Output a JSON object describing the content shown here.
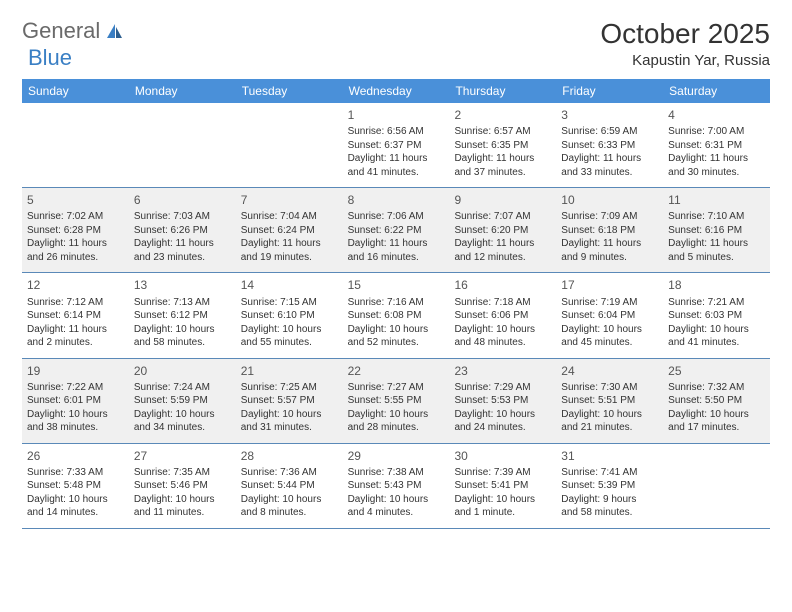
{
  "brand": {
    "part1": "General",
    "part2": "Blue"
  },
  "month_title": "October 2025",
  "location": "Kapustin Yar, Russia",
  "colors": {
    "header_bg": "#4a90d9",
    "header_text": "#ffffff",
    "row_alt_bg": "#f0f0f0",
    "row_border": "#5a89b8",
    "text": "#333333",
    "logo_general": "#6a6a6a",
    "logo_blue": "#3a7fc4"
  },
  "day_names": [
    "Sunday",
    "Monday",
    "Tuesday",
    "Wednesday",
    "Thursday",
    "Friday",
    "Saturday"
  ],
  "weeks": [
    [
      {
        "empty": true
      },
      {
        "empty": true
      },
      {
        "empty": true
      },
      {
        "day": "1",
        "sunrise": "Sunrise: 6:56 AM",
        "sunset": "Sunset: 6:37 PM",
        "daylight1": "Daylight: 11 hours",
        "daylight2": "and 41 minutes."
      },
      {
        "day": "2",
        "sunrise": "Sunrise: 6:57 AM",
        "sunset": "Sunset: 6:35 PM",
        "daylight1": "Daylight: 11 hours",
        "daylight2": "and 37 minutes."
      },
      {
        "day": "3",
        "sunrise": "Sunrise: 6:59 AM",
        "sunset": "Sunset: 6:33 PM",
        "daylight1": "Daylight: 11 hours",
        "daylight2": "and 33 minutes."
      },
      {
        "day": "4",
        "sunrise": "Sunrise: 7:00 AM",
        "sunset": "Sunset: 6:31 PM",
        "daylight1": "Daylight: 11 hours",
        "daylight2": "and 30 minutes."
      }
    ],
    [
      {
        "day": "5",
        "sunrise": "Sunrise: 7:02 AM",
        "sunset": "Sunset: 6:28 PM",
        "daylight1": "Daylight: 11 hours",
        "daylight2": "and 26 minutes."
      },
      {
        "day": "6",
        "sunrise": "Sunrise: 7:03 AM",
        "sunset": "Sunset: 6:26 PM",
        "daylight1": "Daylight: 11 hours",
        "daylight2": "and 23 minutes."
      },
      {
        "day": "7",
        "sunrise": "Sunrise: 7:04 AM",
        "sunset": "Sunset: 6:24 PM",
        "daylight1": "Daylight: 11 hours",
        "daylight2": "and 19 minutes."
      },
      {
        "day": "8",
        "sunrise": "Sunrise: 7:06 AM",
        "sunset": "Sunset: 6:22 PM",
        "daylight1": "Daylight: 11 hours",
        "daylight2": "and 16 minutes."
      },
      {
        "day": "9",
        "sunrise": "Sunrise: 7:07 AM",
        "sunset": "Sunset: 6:20 PM",
        "daylight1": "Daylight: 11 hours",
        "daylight2": "and 12 minutes."
      },
      {
        "day": "10",
        "sunrise": "Sunrise: 7:09 AM",
        "sunset": "Sunset: 6:18 PM",
        "daylight1": "Daylight: 11 hours",
        "daylight2": "and 9 minutes."
      },
      {
        "day": "11",
        "sunrise": "Sunrise: 7:10 AM",
        "sunset": "Sunset: 6:16 PM",
        "daylight1": "Daylight: 11 hours",
        "daylight2": "and 5 minutes."
      }
    ],
    [
      {
        "day": "12",
        "sunrise": "Sunrise: 7:12 AM",
        "sunset": "Sunset: 6:14 PM",
        "daylight1": "Daylight: 11 hours",
        "daylight2": "and 2 minutes."
      },
      {
        "day": "13",
        "sunrise": "Sunrise: 7:13 AM",
        "sunset": "Sunset: 6:12 PM",
        "daylight1": "Daylight: 10 hours",
        "daylight2": "and 58 minutes."
      },
      {
        "day": "14",
        "sunrise": "Sunrise: 7:15 AM",
        "sunset": "Sunset: 6:10 PM",
        "daylight1": "Daylight: 10 hours",
        "daylight2": "and 55 minutes."
      },
      {
        "day": "15",
        "sunrise": "Sunrise: 7:16 AM",
        "sunset": "Sunset: 6:08 PM",
        "daylight1": "Daylight: 10 hours",
        "daylight2": "and 52 minutes."
      },
      {
        "day": "16",
        "sunrise": "Sunrise: 7:18 AM",
        "sunset": "Sunset: 6:06 PM",
        "daylight1": "Daylight: 10 hours",
        "daylight2": "and 48 minutes."
      },
      {
        "day": "17",
        "sunrise": "Sunrise: 7:19 AM",
        "sunset": "Sunset: 6:04 PM",
        "daylight1": "Daylight: 10 hours",
        "daylight2": "and 45 minutes."
      },
      {
        "day": "18",
        "sunrise": "Sunrise: 7:21 AM",
        "sunset": "Sunset: 6:03 PM",
        "daylight1": "Daylight: 10 hours",
        "daylight2": "and 41 minutes."
      }
    ],
    [
      {
        "day": "19",
        "sunrise": "Sunrise: 7:22 AM",
        "sunset": "Sunset: 6:01 PM",
        "daylight1": "Daylight: 10 hours",
        "daylight2": "and 38 minutes."
      },
      {
        "day": "20",
        "sunrise": "Sunrise: 7:24 AM",
        "sunset": "Sunset: 5:59 PM",
        "daylight1": "Daylight: 10 hours",
        "daylight2": "and 34 minutes."
      },
      {
        "day": "21",
        "sunrise": "Sunrise: 7:25 AM",
        "sunset": "Sunset: 5:57 PM",
        "daylight1": "Daylight: 10 hours",
        "daylight2": "and 31 minutes."
      },
      {
        "day": "22",
        "sunrise": "Sunrise: 7:27 AM",
        "sunset": "Sunset: 5:55 PM",
        "daylight1": "Daylight: 10 hours",
        "daylight2": "and 28 minutes."
      },
      {
        "day": "23",
        "sunrise": "Sunrise: 7:29 AM",
        "sunset": "Sunset: 5:53 PM",
        "daylight1": "Daylight: 10 hours",
        "daylight2": "and 24 minutes."
      },
      {
        "day": "24",
        "sunrise": "Sunrise: 7:30 AM",
        "sunset": "Sunset: 5:51 PM",
        "daylight1": "Daylight: 10 hours",
        "daylight2": "and 21 minutes."
      },
      {
        "day": "25",
        "sunrise": "Sunrise: 7:32 AM",
        "sunset": "Sunset: 5:50 PM",
        "daylight1": "Daylight: 10 hours",
        "daylight2": "and 17 minutes."
      }
    ],
    [
      {
        "day": "26",
        "sunrise": "Sunrise: 7:33 AM",
        "sunset": "Sunset: 5:48 PM",
        "daylight1": "Daylight: 10 hours",
        "daylight2": "and 14 minutes."
      },
      {
        "day": "27",
        "sunrise": "Sunrise: 7:35 AM",
        "sunset": "Sunset: 5:46 PM",
        "daylight1": "Daylight: 10 hours",
        "daylight2": "and 11 minutes."
      },
      {
        "day": "28",
        "sunrise": "Sunrise: 7:36 AM",
        "sunset": "Sunset: 5:44 PM",
        "daylight1": "Daylight: 10 hours",
        "daylight2": "and 8 minutes."
      },
      {
        "day": "29",
        "sunrise": "Sunrise: 7:38 AM",
        "sunset": "Sunset: 5:43 PM",
        "daylight1": "Daylight: 10 hours",
        "daylight2": "and 4 minutes."
      },
      {
        "day": "30",
        "sunrise": "Sunrise: 7:39 AM",
        "sunset": "Sunset: 5:41 PM",
        "daylight1": "Daylight: 10 hours",
        "daylight2": "and 1 minute."
      },
      {
        "day": "31",
        "sunrise": "Sunrise: 7:41 AM",
        "sunset": "Sunset: 5:39 PM",
        "daylight1": "Daylight: 9 hours",
        "daylight2": "and 58 minutes."
      },
      {
        "empty": true
      }
    ]
  ]
}
